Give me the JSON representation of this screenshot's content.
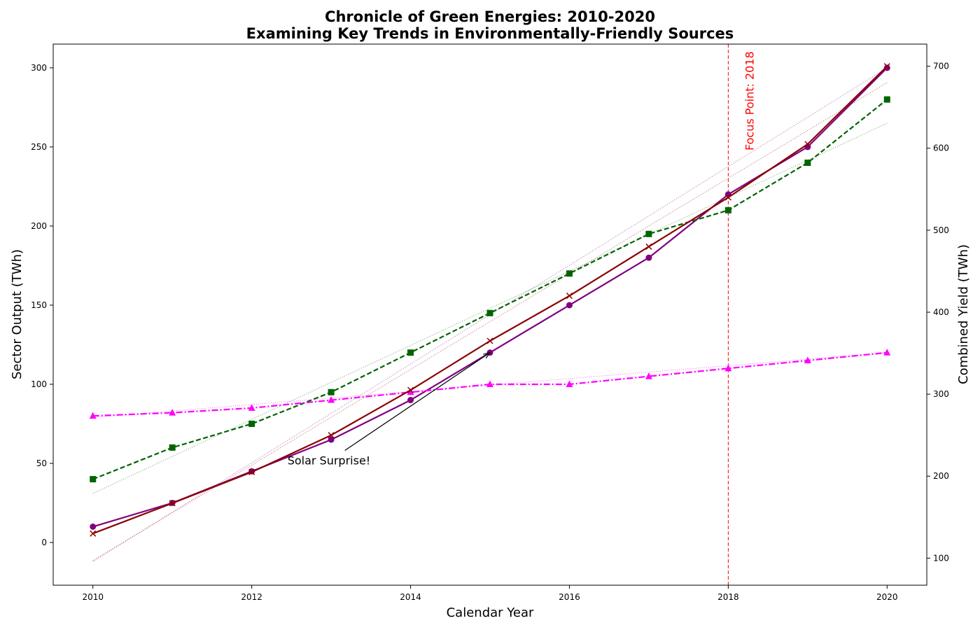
{
  "chart_data": {
    "type": "line",
    "title_line1": "Chronicle of Green Energies: 2010-2020",
    "title_line2": "Examining Key Trends in Environmentally-Friendly Sources",
    "xlabel": "Calendar Year",
    "ylabel_left": "Sector Output (TWh)",
    "ylabel_right": "Combined Yield (TWh)",
    "x": [
      2010,
      2011,
      2012,
      2013,
      2014,
      2015,
      2016,
      2017,
      2018,
      2019,
      2020
    ],
    "xlim": [
      2009.5,
      2020.5
    ],
    "ylim_left": [
      -27,
      315
    ],
    "ylim_right": [
      67,
      727
    ],
    "x_ticks": [
      "2010",
      "2012",
      "2014",
      "2016",
      "2018",
      "2020"
    ],
    "y_ticks_left": [
      "0",
      "50",
      "100",
      "150",
      "200",
      "250",
      "300"
    ],
    "y_ticks_right": [
      "100",
      "200",
      "300",
      "400",
      "500",
      "600",
      "700"
    ],
    "grid": false,
    "legend": "none",
    "series": [
      {
        "axis": "left",
        "color": "#800080",
        "line_style": "solid",
        "marker": "circle",
        "values": [
          10,
          25,
          45,
          65,
          90,
          120,
          150,
          180,
          220,
          250,
          300
        ],
        "trend": {
          "start": -12,
          "end": 300
        }
      },
      {
        "axis": "left",
        "color": "#006400",
        "line_style": "dashed",
        "marker": "square",
        "values": [
          40,
          60,
          75,
          95,
          120,
          145,
          170,
          195,
          210,
          240,
          280
        ],
        "trend": {
          "start": 31,
          "end": 265
        }
      },
      {
        "axis": "left",
        "color": "#FF00FF",
        "line_style": "dashdot",
        "marker": "triangle",
        "values": [
          80,
          82,
          85,
          90,
          95,
          100,
          100,
          105,
          110,
          115,
          120
        ],
        "trend": {
          "start": 79,
          "end": 120
        }
      },
      {
        "axis": "right",
        "color": "#8B0000",
        "line_style": "solid",
        "marker": "x",
        "values": [
          130,
          167,
          205,
          250,
          305,
          365,
          420,
          480,
          540,
          605,
          700
        ],
        "trend": {
          "start": 97,
          "end": 680
        }
      }
    ],
    "annotations": [
      {
        "text": "Solar Surprise!",
        "x": 2012.45,
        "y": 52,
        "arrow_to_x": 2015,
        "arrow_to_y": 120
      }
    ],
    "focus_line": {
      "x": 2018,
      "label": "Focus Point: 2018",
      "color": "#FF0000"
    }
  }
}
